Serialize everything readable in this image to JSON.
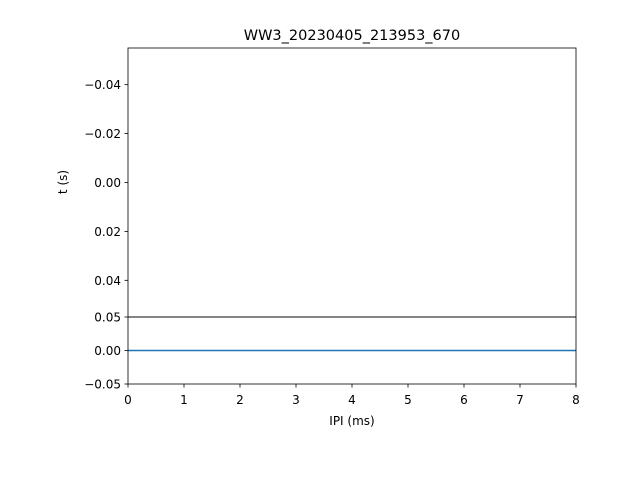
{
  "chart_data": [
    {
      "type": "line",
      "title": "WW3_20230405_213953_670",
      "xlabel": "",
      "ylabel": "t (s)",
      "ylim": [
        0.055,
        -0.055
      ],
      "y_inverted": true,
      "yticks": [
        "−0.04",
        "−0.02",
        "0.00",
        "0.02",
        "0.04"
      ],
      "ytick_values": [
        -0.04,
        -0.02,
        0.0,
        0.02,
        0.04
      ],
      "xticks_visible": false,
      "grid": false,
      "series": []
    },
    {
      "type": "line",
      "xlabel": "IPI (ms)",
      "ylabel": "",
      "xlim": [
        0,
        8
      ],
      "ylim": [
        -0.05,
        0.05
      ],
      "xticks": [
        "0",
        "1",
        "2",
        "3",
        "4",
        "5",
        "6",
        "7",
        "8"
      ],
      "xtick_values": [
        0,
        1,
        2,
        3,
        4,
        5,
        6,
        7,
        8
      ],
      "yticks": [
        "−0.05",
        "0.00",
        "0.05"
      ],
      "ytick_values": [
        -0.05,
        0.0,
        0.05
      ],
      "grid": false,
      "series": [
        {
          "x": [
            0,
            8
          ],
          "y": [
            0,
            0
          ],
          "color": "#1f77b4"
        }
      ]
    }
  ]
}
